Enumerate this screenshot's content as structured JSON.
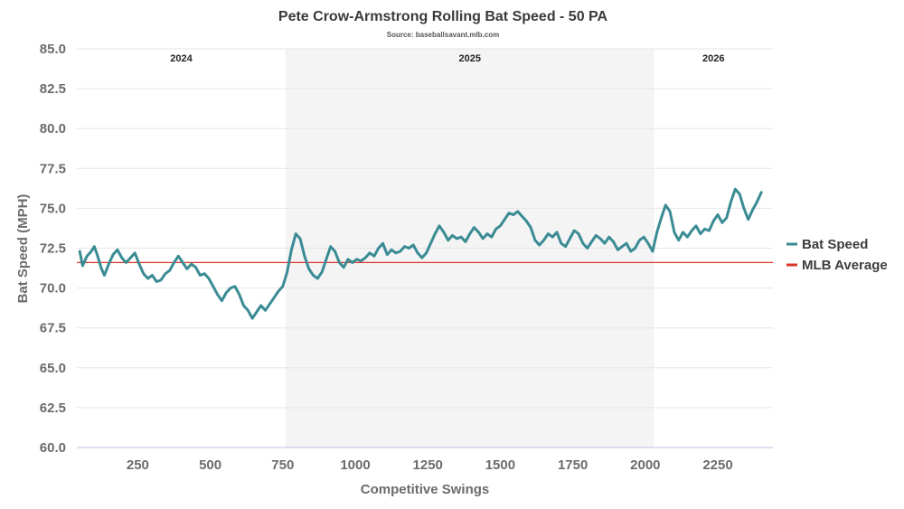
{
  "chart_data": {
    "type": "line",
    "title": "Pete Crow-Armstrong Rolling Bat Speed - 50 PA",
    "subtitle": "Source: baseballsavant.mlb.com",
    "xlabel": "Competitive Swings",
    "ylabel": "Bat Speed (MPH)",
    "xlim": [
      40,
      2440
    ],
    "ylim": [
      60,
      85
    ],
    "x_ticks": [
      250,
      500,
      750,
      1000,
      1250,
      1500,
      1750,
      2000,
      2250
    ],
    "y_ticks": [
      60,
      62.5,
      65,
      67.5,
      70,
      72.5,
      75,
      77.5,
      80,
      82.5,
      85
    ],
    "x_tick_labels": [
      "250",
      "500",
      "750",
      "1000",
      "1250",
      "1500",
      "1750",
      "2000",
      "2250"
    ],
    "y_tick_labels": [
      "60.0",
      "62.5",
      "65.0",
      "67.5",
      "70.0",
      "72.5",
      "75.0",
      "77.5",
      "80.0",
      "82.5",
      "85.0"
    ],
    "grid": true,
    "legend": "right",
    "seasons": [
      {
        "label": "2024",
        "start": 40,
        "end": 760,
        "shaded": false
      },
      {
        "label": "2025",
        "start": 760,
        "end": 2030,
        "shaded": true
      },
      {
        "label": "2026",
        "start": 2030,
        "end": 2440,
        "shaded": false
      }
    ],
    "reference_line": {
      "name": "MLB Average",
      "value": 71.6,
      "color": "#d9372b"
    },
    "series": [
      {
        "name": "Bat Speed",
        "color": "#3a8b94",
        "points": [
          [
            50,
            72.3
          ],
          [
            60,
            71.4
          ],
          [
            75,
            72.0
          ],
          [
            90,
            72.3
          ],
          [
            100,
            72.6
          ],
          [
            110,
            72.1
          ],
          [
            125,
            71.2
          ],
          [
            135,
            70.8
          ],
          [
            150,
            71.5
          ],
          [
            165,
            72.1
          ],
          [
            180,
            72.4
          ],
          [
            195,
            71.9
          ],
          [
            210,
            71.6
          ],
          [
            225,
            71.9
          ],
          [
            240,
            72.2
          ],
          [
            255,
            71.5
          ],
          [
            270,
            70.9
          ],
          [
            285,
            70.6
          ],
          [
            300,
            70.8
          ],
          [
            315,
            70.4
          ],
          [
            330,
            70.5
          ],
          [
            345,
            70.9
          ],
          [
            360,
            71.1
          ],
          [
            375,
            71.6
          ],
          [
            390,
            72.0
          ],
          [
            405,
            71.6
          ],
          [
            420,
            71.2
          ],
          [
            435,
            71.5
          ],
          [
            450,
            71.3
          ],
          [
            465,
            70.8
          ],
          [
            480,
            70.9
          ],
          [
            495,
            70.6
          ],
          [
            510,
            70.1
          ],
          [
            525,
            69.6
          ],
          [
            540,
            69.2
          ],
          [
            555,
            69.7
          ],
          [
            570,
            70.0
          ],
          [
            585,
            70.1
          ],
          [
            600,
            69.6
          ],
          [
            615,
            68.9
          ],
          [
            630,
            68.6
          ],
          [
            645,
            68.1
          ],
          [
            660,
            68.5
          ],
          [
            675,
            68.9
          ],
          [
            690,
            68.6
          ],
          [
            705,
            69.0
          ],
          [
            720,
            69.4
          ],
          [
            735,
            69.8
          ],
          [
            750,
            70.1
          ],
          [
            765,
            71.0
          ],
          [
            780,
            72.4
          ],
          [
            795,
            73.4
          ],
          [
            810,
            73.1
          ],
          [
            825,
            72.0
          ],
          [
            840,
            71.2
          ],
          [
            855,
            70.8
          ],
          [
            870,
            70.6
          ],
          [
            885,
            71.0
          ],
          [
            900,
            71.8
          ],
          [
            915,
            72.6
          ],
          [
            930,
            72.3
          ],
          [
            945,
            71.6
          ],
          [
            960,
            71.3
          ],
          [
            975,
            71.8
          ],
          [
            990,
            71.6
          ],
          [
            1005,
            71.8
          ],
          [
            1020,
            71.7
          ],
          [
            1035,
            71.9
          ],
          [
            1050,
            72.2
          ],
          [
            1065,
            72.0
          ],
          [
            1080,
            72.5
          ],
          [
            1095,
            72.8
          ],
          [
            1110,
            72.1
          ],
          [
            1125,
            72.4
          ],
          [
            1140,
            72.2
          ],
          [
            1155,
            72.3
          ],
          [
            1170,
            72.6
          ],
          [
            1185,
            72.5
          ],
          [
            1200,
            72.7
          ],
          [
            1215,
            72.2
          ],
          [
            1230,
            71.9
          ],
          [
            1245,
            72.2
          ],
          [
            1260,
            72.8
          ],
          [
            1275,
            73.4
          ],
          [
            1290,
            73.9
          ],
          [
            1305,
            73.5
          ],
          [
            1320,
            73.0
          ],
          [
            1335,
            73.3
          ],
          [
            1350,
            73.1
          ],
          [
            1365,
            73.2
          ],
          [
            1380,
            72.9
          ],
          [
            1395,
            73.4
          ],
          [
            1410,
            73.8
          ],
          [
            1425,
            73.5
          ],
          [
            1440,
            73.1
          ],
          [
            1455,
            73.4
          ],
          [
            1470,
            73.2
          ],
          [
            1485,
            73.7
          ],
          [
            1500,
            73.9
          ],
          [
            1515,
            74.3
          ],
          [
            1530,
            74.7
          ],
          [
            1545,
            74.6
          ],
          [
            1560,
            74.8
          ],
          [
            1575,
            74.5
          ],
          [
            1590,
            74.2
          ],
          [
            1605,
            73.8
          ],
          [
            1620,
            73.0
          ],
          [
            1635,
            72.7
          ],
          [
            1650,
            73.0
          ],
          [
            1665,
            73.4
          ],
          [
            1680,
            73.2
          ],
          [
            1695,
            73.5
          ],
          [
            1710,
            72.8
          ],
          [
            1725,
            72.6
          ],
          [
            1740,
            73.1
          ],
          [
            1755,
            73.6
          ],
          [
            1770,
            73.4
          ],
          [
            1785,
            72.8
          ],
          [
            1800,
            72.5
          ],
          [
            1815,
            72.9
          ],
          [
            1830,
            73.3
          ],
          [
            1845,
            73.1
          ],
          [
            1860,
            72.8
          ],
          [
            1875,
            73.2
          ],
          [
            1890,
            72.9
          ],
          [
            1905,
            72.4
          ],
          [
            1920,
            72.6
          ],
          [
            1935,
            72.8
          ],
          [
            1950,
            72.3
          ],
          [
            1965,
            72.5
          ],
          [
            1980,
            73.0
          ],
          [
            1995,
            73.2
          ],
          [
            2010,
            72.8
          ],
          [
            2025,
            72.3
          ],
          [
            2040,
            73.5
          ],
          [
            2055,
            74.4
          ],
          [
            2070,
            75.2
          ],
          [
            2085,
            74.8
          ],
          [
            2100,
            73.5
          ],
          [
            2115,
            73.0
          ],
          [
            2130,
            73.5
          ],
          [
            2145,
            73.2
          ],
          [
            2160,
            73.6
          ],
          [
            2175,
            73.9
          ],
          [
            2190,
            73.4
          ],
          [
            2205,
            73.7
          ],
          [
            2220,
            73.6
          ],
          [
            2235,
            74.2
          ],
          [
            2250,
            74.6
          ],
          [
            2265,
            74.1
          ],
          [
            2280,
            74.4
          ],
          [
            2295,
            75.4
          ],
          [
            2310,
            76.2
          ],
          [
            2325,
            75.9
          ],
          [
            2340,
            75.0
          ],
          [
            2355,
            74.3
          ],
          [
            2370,
            74.9
          ],
          [
            2385,
            75.4
          ],
          [
            2400,
            76.0
          ]
        ]
      }
    ]
  }
}
